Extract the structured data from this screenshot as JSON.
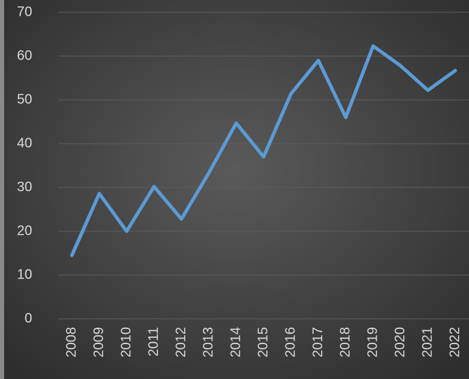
{
  "chart_data": {
    "type": "line",
    "categories": [
      "2008",
      "2009",
      "2010",
      "2011",
      "2012",
      "2013",
      "2014",
      "2015",
      "2016",
      "2017",
      "2018",
      "2019",
      "2020",
      "2021",
      "2022"
    ],
    "values": [
      14.5,
      28.6,
      20,
      30.2,
      22.8,
      33.3,
      44.7,
      37,
      51.4,
      59,
      46,
      62.3,
      57.8,
      52.2,
      56.7
    ],
    "color": "#5b9bd5",
    "ylim": [
      0,
      70
    ],
    "yticks": [
      0,
      10,
      20,
      30,
      40,
      50,
      60,
      70
    ],
    "grid": true
  }
}
